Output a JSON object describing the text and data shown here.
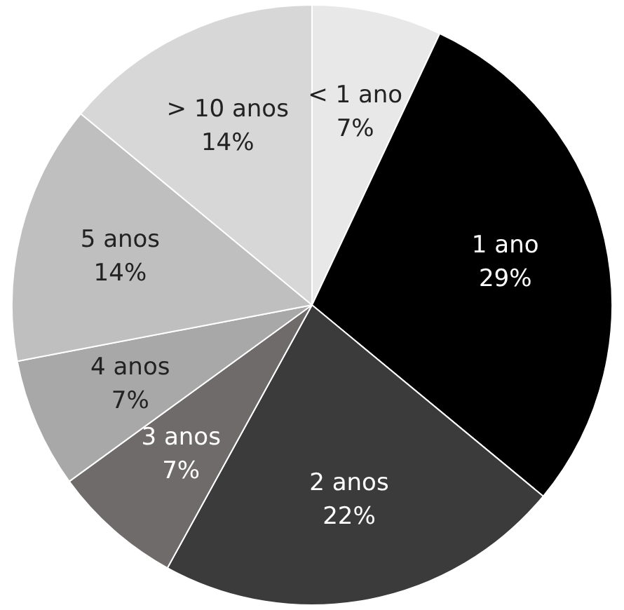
{
  "chart_data": {
    "type": "pie",
    "categories": [
      "< 1 ano",
      "1 ano",
      "2 anos",
      "3 anos",
      "4 anos",
      "5 anos",
      "> 10 anos"
    ],
    "values": [
      7,
      29,
      22,
      7,
      7,
      14,
      14
    ],
    "value_labels": [
      "7%",
      "29%",
      "22%",
      "7%",
      "7%",
      "14%",
      "14%"
    ],
    "colors": [
      "#e8e8e8",
      "#000000",
      "#3b3b3b",
      "#6f6b6b",
      "#a8a8a8",
      "#bfbfbf",
      "#d7d7d7"
    ],
    "legend": false
  }
}
